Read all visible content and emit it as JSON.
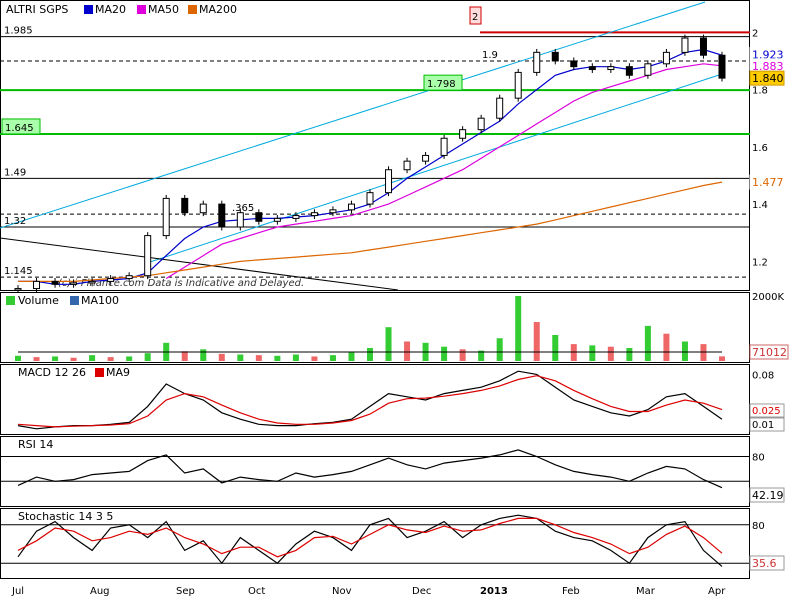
{
  "colors": {
    "price": "#000000",
    "ma20": "#0000cc",
    "ma50": "#dd00dd",
    "ma200": "#dd6600",
    "channel": "#00aadd",
    "hline": "#000000",
    "hline_green": "#00bb00",
    "resistance": "#cc0000",
    "vol_up": "#33cc33",
    "vol_down": "#ee6666",
    "macd": "#000000",
    "macd_signal": "#dd0000",
    "panel_bg": "#ffffff"
  },
  "chart_data": [
    {
      "type": "line",
      "title": "ALTRI SGPS",
      "note": "(c) i-Finance.com Data is Indicative and Delayed.",
      "legend": [
        {
          "name": "MA20",
          "color": "#0000cc"
        },
        {
          "name": "MA50",
          "color": "#dd00dd"
        },
        {
          "name": "MA200",
          "color": "#dd6600"
        }
      ],
      "ylim": [
        1.1,
        2.05
      ],
      "yticks": [
        "2",
        "1.8",
        "1.6",
        "1.4",
        "1.2"
      ],
      "xlabels": [
        "Jul",
        "Aug",
        "Sep",
        "Oct",
        "Nov",
        "Dec",
        "2013",
        "Feb",
        "Mar",
        "Apr"
      ],
      "x": [
        0,
        5,
        10,
        15,
        20,
        25,
        30,
        35,
        40,
        45,
        50,
        55,
        60,
        65,
        70,
        75,
        80,
        85,
        90,
        95,
        100,
        105,
        110,
        115,
        120,
        125,
        130,
        135,
        140,
        145,
        150,
        155,
        160,
        165,
        170,
        175,
        180,
        185,
        190
      ],
      "series": [
        {
          "name": "Price",
          "values": [
            1.105,
            1.13,
            1.12,
            1.125,
            1.13,
            1.14,
            1.15,
            1.29,
            1.42,
            1.37,
            1.4,
            1.32,
            1.37,
            1.34,
            1.35,
            1.36,
            1.37,
            1.38,
            1.4,
            1.44,
            1.52,
            1.55,
            1.57,
            1.63,
            1.66,
            1.7,
            1.77,
            1.86,
            1.93,
            1.9,
            1.88,
            1.87,
            1.88,
            1.85,
            1.89,
            1.93,
            1.98,
            1.92,
            1.84
          ]
        },
        {
          "name": "MA20",
          "values": [
            1.13,
            1.13,
            1.12,
            1.12,
            1.13,
            1.135,
            1.14,
            1.16,
            1.22,
            1.28,
            1.32,
            1.34,
            1.345,
            1.35,
            1.35,
            1.355,
            1.36,
            1.37,
            1.38,
            1.4,
            1.44,
            1.49,
            1.53,
            1.57,
            1.61,
            1.65,
            1.69,
            1.75,
            1.8,
            1.85,
            1.87,
            1.88,
            1.88,
            1.87,
            1.88,
            1.9,
            1.93,
            1.94,
            1.92
          ]
        },
        {
          "name": "MA50",
          "values": [
            null,
            null,
            null,
            null,
            null,
            null,
            null,
            null,
            1.14,
            1.18,
            1.22,
            1.26,
            1.28,
            1.3,
            1.32,
            1.33,
            1.34,
            1.35,
            1.36,
            1.38,
            1.4,
            1.43,
            1.46,
            1.49,
            1.52,
            1.56,
            1.6,
            1.64,
            1.68,
            1.72,
            1.76,
            1.79,
            1.81,
            1.83,
            1.85,
            1.87,
            1.88,
            1.89,
            1.883
          ]
        },
        {
          "name": "MA200",
          "values": [
            1.13,
            1.13,
            1.13,
            1.13,
            1.135,
            1.14,
            1.145,
            1.15,
            1.16,
            1.17,
            1.18,
            1.19,
            1.2,
            1.205,
            1.21,
            1.215,
            1.22,
            1.225,
            1.23,
            1.24,
            1.25,
            1.26,
            1.27,
            1.28,
            1.29,
            1.3,
            1.31,
            1.32,
            1.33,
            1.345,
            1.36,
            1.375,
            1.39,
            1.405,
            1.42,
            1.435,
            1.45,
            1.465,
            1.477
          ]
        }
      ],
      "hlines": [
        {
          "value": 1.985,
          "label": "1.985"
        },
        {
          "value": 1.9,
          "label": "1.9",
          "style": "dashed"
        },
        {
          "value": 1.798,
          "label": "1.798",
          "style": "green"
        },
        {
          "value": 1.645,
          "label": "1.645",
          "style": "green"
        },
        {
          "value": 1.49,
          "label": "1.49"
        },
        {
          "value": 1.32,
          "label": "1.32"
        },
        {
          "value": 1.145,
          "label": "1.145",
          "style": "dashed"
        },
        {
          "value": 1.365,
          "label": ".365",
          "style": "dashed"
        },
        {
          "value": 2.0,
          "label": "",
          "style": "red"
        }
      ],
      "annotation_box": "2",
      "price_tags": [
        {
          "value": 1.923,
          "label": "1.923",
          "bg": "#ffffff",
          "color": "#0000cc"
        },
        {
          "value": 1.883,
          "label": "1.883",
          "bg": "#ffffff",
          "color": "#dd00dd"
        },
        {
          "value": 1.84,
          "label": "1.840",
          "bg": "#ffcc00",
          "color": "#000000"
        },
        {
          "value": 1.477,
          "label": "1.477",
          "bg": "#ffffff",
          "color": "#dd6600"
        }
      ]
    },
    {
      "type": "bar",
      "title": "Volume",
      "legend": [
        {
          "name": "Volume",
          "color": "#33cc33"
        },
        {
          "name": "MA100",
          "color": "#3366aa"
        }
      ],
      "ylim": [
        0,
        2000000
      ],
      "yticks": [
        "2000K"
      ],
      "values": [
        80,
        60,
        70,
        50,
        90,
        60,
        70,
        120,
        280,
        150,
        180,
        110,
        100,
        90,
        80,
        100,
        70,
        90,
        130,
        200,
        520,
        300,
        280,
        220,
        180,
        160,
        350,
        1000,
        600,
        400,
        260,
        240,
        220,
        200,
        540,
        420,
        300,
        260,
        71
      ],
      "up": [
        1,
        0,
        1,
        0,
        1,
        0,
        1,
        1,
        1,
        0,
        1,
        0,
        1,
        0,
        1,
        1,
        0,
        1,
        1,
        1,
        1,
        0,
        1,
        1,
        0,
        1,
        1,
        1,
        0,
        1,
        0,
        1,
        0,
        1,
        1,
        0,
        1,
        0,
        0
      ],
      "last_label": "71012"
    },
    {
      "type": "line",
      "title": "MACD 12 26",
      "legend": [
        {
          "name": "MACD 12 26",
          "color": "#000000"
        },
        {
          "name": "MA9",
          "color": "#dd0000"
        }
      ],
      "ylim": [
        -0.01,
        0.09
      ],
      "yticks": [
        "0.08"
      ],
      "series": [
        {
          "name": "MACD",
          "values": [
            0.0,
            -0.005,
            -0.002,
            0.0,
            0.0,
            0.002,
            0.005,
            0.03,
            0.065,
            0.05,
            0.04,
            0.02,
            0.01,
            0.002,
            0.0,
            0.0,
            0.003,
            0.005,
            0.01,
            0.03,
            0.05,
            0.045,
            0.04,
            0.05,
            0.055,
            0.06,
            0.07,
            0.085,
            0.08,
            0.06,
            0.04,
            0.03,
            0.02,
            0.015,
            0.025,
            0.045,
            0.05,
            0.03,
            0.01
          ]
        },
        {
          "name": "MA9",
          "values": [
            0.002,
            0.0,
            -0.002,
            -0.001,
            0.0,
            0.001,
            0.003,
            0.015,
            0.04,
            0.05,
            0.045,
            0.032,
            0.02,
            0.01,
            0.004,
            0.002,
            0.002,
            0.004,
            0.008,
            0.018,
            0.035,
            0.042,
            0.043,
            0.046,
            0.05,
            0.055,
            0.062,
            0.072,
            0.078,
            0.07,
            0.055,
            0.042,
            0.03,
            0.022,
            0.022,
            0.032,
            0.04,
            0.035,
            0.025
          ]
        }
      ],
      "value_tags": [
        {
          "label": "0.025",
          "color": "#dd0000"
        },
        {
          "label": "0.01",
          "color": "#000000"
        }
      ]
    },
    {
      "type": "line",
      "title": "RSI 14",
      "ylim": [
        20,
        100
      ],
      "yticks": [
        "80"
      ],
      "reference_lines": [
        80,
        50
      ],
      "series": [
        {
          "name": "RSI 14",
          "values": [
            45,
            55,
            50,
            52,
            58,
            60,
            62,
            75,
            82,
            60,
            65,
            48,
            55,
            52,
            50,
            60,
            55,
            58,
            62,
            70,
            78,
            70,
            65,
            72,
            75,
            78,
            82,
            88,
            80,
            70,
            62,
            58,
            55,
            50,
            60,
            68,
            65,
            52,
            42.19
          ]
        }
      ],
      "last_label": "42.19"
    },
    {
      "type": "line",
      "title": "Stochastic 14 3 5",
      "ylim": [
        0,
        100
      ],
      "yticks": [
        "80"
      ],
      "reference_lines": [
        80,
        20
      ],
      "series": [
        {
          "name": "%K",
          "values": [
            30,
            70,
            85,
            60,
            40,
            75,
            80,
            60,
            85,
            40,
            55,
            20,
            60,
            40,
            20,
            50,
            70,
            60,
            40,
            80,
            90,
            60,
            70,
            85,
            60,
            80,
            90,
            95,
            90,
            70,
            60,
            55,
            40,
            20,
            60,
            80,
            85,
            40,
            15
          ]
        },
        {
          "name": "%D",
          "values": [
            40,
            55,
            75,
            70,
            55,
            60,
            70,
            65,
            75,
            60,
            50,
            35,
            45,
            45,
            30,
            40,
            60,
            62,
            50,
            65,
            80,
            72,
            68,
            78,
            70,
            72,
            82,
            90,
            90,
            80,
            68,
            60,
            50,
            35,
            45,
            65,
            78,
            60,
            35.6
          ]
        }
      ],
      "last_label": "35.6"
    }
  ]
}
